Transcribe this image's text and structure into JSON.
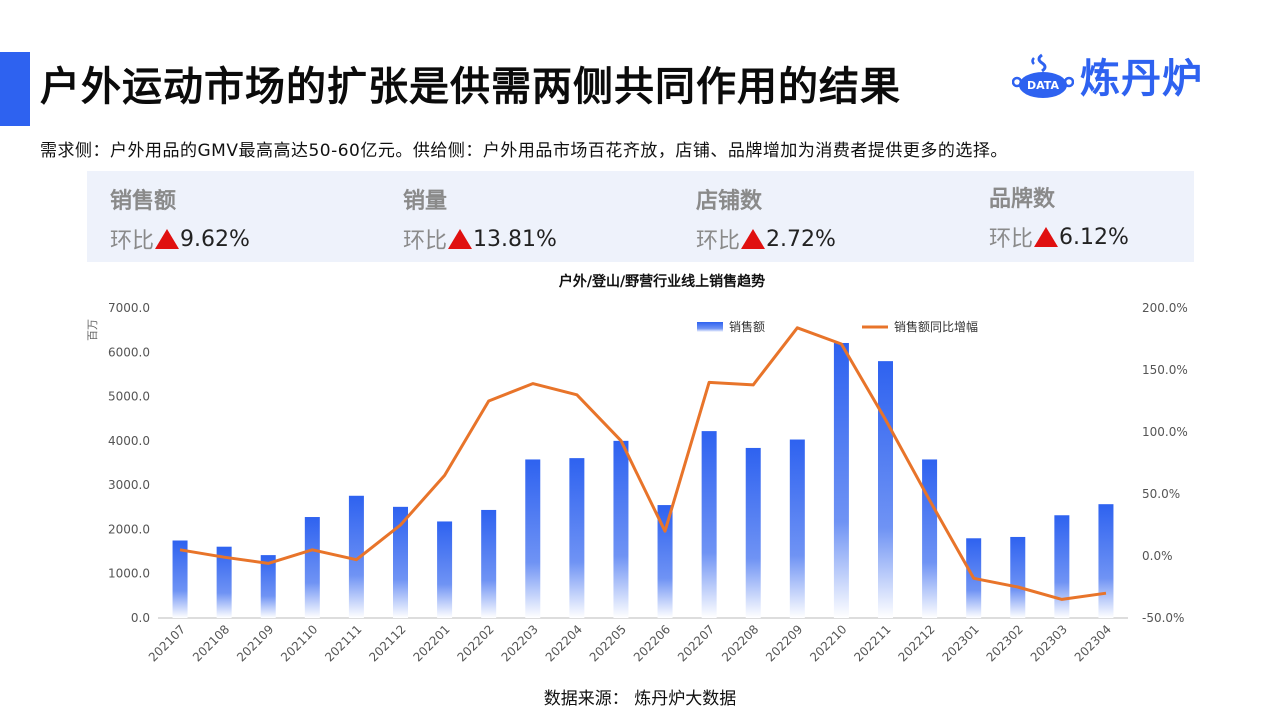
{
  "header": {
    "title": "户外运动市场的扩张是供需两侧共同作用的结果",
    "logo_badge": "DATA",
    "logo_text": "炼丹炉"
  },
  "subtitle": "需求侧：户外用品的GMV最高高达50-60亿元。供给侧：户外用品市场百花齐放，店铺、品牌增加为消费者提供更多的选择。",
  "kpis": [
    {
      "name": "销售额",
      "prefix": "环比",
      "value": "9.62%"
    },
    {
      "name": "销量",
      "prefix": "环比",
      "value": "13.81%"
    },
    {
      "name": "店铺数",
      "prefix": "环比",
      "value": "2.72%"
    },
    {
      "name": "品牌数",
      "prefix": "环比",
      "value": "6.12%"
    }
  ],
  "colors": {
    "accent": "#2e62f0",
    "bar": "#2e62f0",
    "line": "#e8742a",
    "up_arrow": "#e01010"
  },
  "chart_data": {
    "type": "bar",
    "title": "户外/登山/野营行业线上销售趋势",
    "ylabel": "百万",
    "ylim": [
      0,
      7000
    ],
    "y2lim": [
      -50,
      200
    ],
    "yticks": [
      "7000.0",
      "6000.0",
      "5000.0",
      "4000.0",
      "3000.0",
      "2000.0",
      "1000.0",
      "0.0"
    ],
    "y2ticks": [
      "200.0%",
      "150.0%",
      "100.0%",
      "50.0%",
      "0.0%",
      "-50.0%"
    ],
    "legend_position": "top-right",
    "categories": [
      "202107",
      "202108",
      "202109",
      "202110",
      "202111",
      "202112",
      "202201",
      "202202",
      "202203",
      "202204",
      "202205",
      "202206",
      "202207",
      "202208",
      "202209",
      "202210",
      "202211",
      "202212",
      "202301",
      "202302",
      "202303",
      "202304"
    ],
    "series": [
      {
        "name": "销售额",
        "type": "bar",
        "axis": "left",
        "values": [
          1750,
          1610,
          1420,
          2280,
          2760,
          2510,
          2180,
          2440,
          3580,
          3610,
          4000,
          2550,
          4220,
          3840,
          4030,
          6210,
          5800,
          3580,
          1800,
          1830,
          2320,
          2570
        ]
      },
      {
        "name": "销售额同比增幅",
        "type": "line",
        "axis": "right",
        "values": [
          5,
          -1,
          -6,
          5,
          -3,
          25,
          65,
          125,
          139,
          130,
          93,
          20,
          140,
          138,
          184,
          171,
          110,
          45,
          -18,
          -25,
          -35,
          -30
        ]
      }
    ]
  },
  "source": "数据来源： 炼丹炉大数据"
}
